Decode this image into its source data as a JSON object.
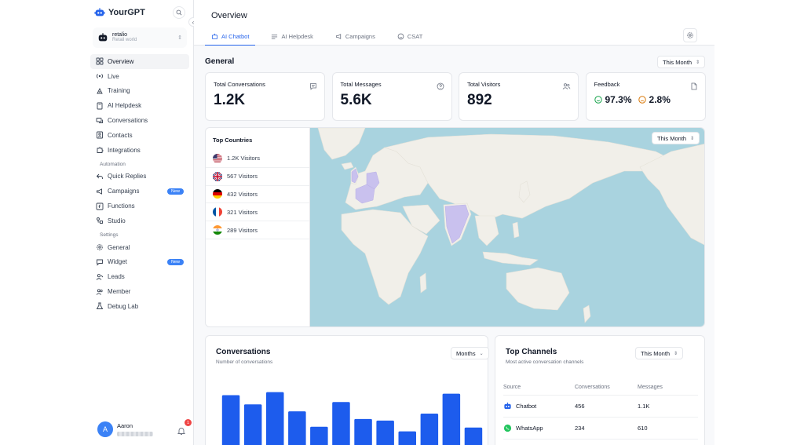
{
  "brand": {
    "name": "YourGPT"
  },
  "workspace": {
    "name": "retalio",
    "sub": "Retail world"
  },
  "sidebar": {
    "items": [
      {
        "label": "Overview",
        "icon": "grid-icon",
        "active": true
      },
      {
        "label": "Live",
        "icon": "broadcast-icon"
      },
      {
        "label": "Training",
        "icon": "training-icon"
      },
      {
        "label": "AI Helpdesk",
        "icon": "book-icon"
      },
      {
        "label": "Conversations",
        "icon": "chat-icon"
      },
      {
        "label": "Contacts",
        "icon": "contacts-icon"
      },
      {
        "label": "Integrations",
        "icon": "puzzle-icon"
      }
    ],
    "automation_label": "Automation",
    "automation_items": [
      {
        "label": "Quick Replies",
        "icon": "reply-icon"
      },
      {
        "label": "Campaigns",
        "icon": "megaphone-icon",
        "badge": "New"
      },
      {
        "label": "Functions",
        "icon": "function-icon"
      },
      {
        "label": "Studio",
        "icon": "studio-icon"
      }
    ],
    "settings_label": "Settings",
    "settings_items": [
      {
        "label": "General",
        "icon": "gear-icon"
      },
      {
        "label": "Widget",
        "icon": "widget-icon",
        "badge": "New"
      },
      {
        "label": "Leads",
        "icon": "leads-icon"
      },
      {
        "label": "Member",
        "icon": "member-icon"
      },
      {
        "label": "Debug Lab",
        "icon": "flask-icon"
      }
    ]
  },
  "user": {
    "name": "Aaron",
    "initial": "A",
    "notifications": "1"
  },
  "header": {
    "title": "Overview",
    "tabs": [
      {
        "label": "AI Chatbot",
        "icon": "bot-icon",
        "active": true
      },
      {
        "label": "AI Helpdesk",
        "icon": "helpdesk-icon"
      },
      {
        "label": "Campaigns",
        "icon": "megaphone-icon"
      },
      {
        "label": "CSAT",
        "icon": "smile-icon"
      }
    ]
  },
  "general": {
    "title": "General",
    "period": "This Month",
    "cards": [
      {
        "label": "Total Conversations",
        "value": "1.2K",
        "icon": "message-icon"
      },
      {
        "label": "Total Messages",
        "value": "5.6K",
        "icon": "question-icon"
      },
      {
        "label": "Total Visitors",
        "value": "892",
        "icon": "users-icon"
      }
    ],
    "feedback": {
      "label": "Feedback",
      "positive": "97.3%",
      "negative": "2.8%",
      "icon": "file-icon"
    }
  },
  "top_countries": {
    "title": "Top Countries",
    "period": "This Month",
    "rows": [
      {
        "flag": "us",
        "visitors": "1.2K Visitors"
      },
      {
        "flag": "gb",
        "visitors": "567 Visitors"
      },
      {
        "flag": "de",
        "visitors": "432 Visitors"
      },
      {
        "flag": "fr",
        "visitors": "321 Visitors"
      },
      {
        "flag": "in",
        "visitors": "289 Visitors"
      }
    ]
  },
  "conversations": {
    "title": "Conversations",
    "subtitle": "Number of conversations",
    "period": "Months"
  },
  "chart_data": {
    "type": "bar",
    "categories": [
      "",
      "",
      "",
      "",
      "",
      "",
      "",
      "",
      "",
      "",
      "",
      ""
    ],
    "values": [
      76,
      64,
      80,
      55,
      35,
      67,
      45,
      43,
      29,
      52,
      78,
      34
    ],
    "ylim": [
      0,
      100
    ],
    "color": "#1d5ced"
  },
  "top_channels": {
    "title": "Top Channels",
    "subtitle": "Most active conversation channels",
    "period": "This Month",
    "headers": {
      "source": "Source",
      "conversations": "Conversations",
      "messages": "Messages"
    },
    "rows": [
      {
        "source": "Chatbot",
        "icon": "bot-icon",
        "conversations": "456",
        "messages": "1.1K"
      },
      {
        "source": "WhatsApp",
        "icon": "whatsapp-icon",
        "conversations": "234",
        "messages": "610"
      }
    ]
  },
  "colors": {
    "accent": "#2563eb",
    "bar": "#1d5ced",
    "ocean": "#a9d3df",
    "land": "#f1efe9",
    "highlight": "#c9c1ee"
  }
}
